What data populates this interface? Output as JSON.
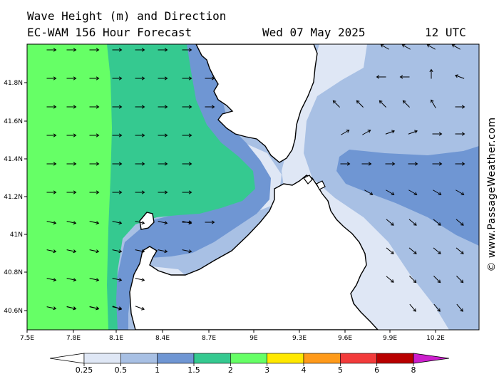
{
  "header": {
    "line1": "Wave Height (m) and Direction",
    "line2": "EC-WAM 156 Hour Forecast",
    "date": "Wed 07 May 2025",
    "time": "12 UTC"
  },
  "credit": "© www.PassageWeather.com",
  "map": {
    "lon_ticks": [
      "7.5E",
      "7.8E",
      "8.1E",
      "8.4E",
      "8.7E",
      "9E",
      "9.3E",
      "9.6E",
      "9.9E",
      "10.2E"
    ],
    "lat_ticks": [
      "41.8N",
      "41.6N",
      "41.4N",
      "41.2N",
      "41N",
      "40.8N",
      "40.6N"
    ],
    "land_color": "#ffffff",
    "coast_color": "#000000"
  },
  "legend": {
    "labels": [
      "0.25",
      "0.5",
      "1",
      "1.5",
      "2",
      "3",
      "4",
      "5",
      "6",
      "8"
    ],
    "colors": [
      "#dfe7f5",
      "#a8c0e4",
      "#6f96d3",
      "#35c990",
      "#66ff66",
      "#ffe800",
      "#ff9a1a",
      "#f23b3b",
      "#b80000",
      "#cc1fcc"
    ]
  },
  "wave_zones": [
    {
      "range": "0.25-0.5",
      "color": "#dfe7f5"
    },
    {
      "range": "0.5-1",
      "color": "#a8c0e4"
    },
    {
      "range": "1-1.5",
      "color": "#6f96d3"
    },
    {
      "range": "1.5-2",
      "color": "#35c990"
    },
    {
      "range": "2-3",
      "color": "#66ff66"
    }
  ]
}
